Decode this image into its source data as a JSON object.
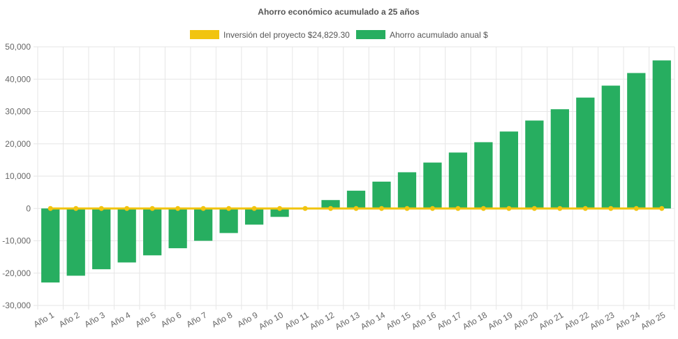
{
  "chart_data": {
    "type": "bar",
    "title": "Ahorro económico acumulado a 25 años",
    "categories": [
      "Año 1",
      "Año 2",
      "Año 3",
      "Año 4",
      "Año 5",
      "Año 6",
      "Año 7",
      "Año 8",
      "Año 9",
      "Año 10",
      "Año 11",
      "Año 12",
      "Año 13",
      "Año 14",
      "Año 15",
      "Año 16",
      "Año 17",
      "Año 18",
      "Año 19",
      "Año 20",
      "Año 21",
      "Año 22",
      "Año 23",
      "Año 24",
      "Año 25"
    ],
    "series": [
      {
        "name": "Inversión del proyecto $24,829.30",
        "type": "line",
        "color": "#f1c40f",
        "values": [
          0,
          0,
          0,
          0,
          0,
          0,
          0,
          0,
          0,
          0,
          0,
          0,
          0,
          0,
          0,
          0,
          0,
          0,
          0,
          0,
          0,
          0,
          0,
          0,
          0
        ]
      },
      {
        "name": "Ahorro acumulado anual $",
        "type": "bar",
        "color": "#27ae60",
        "values": [
          -22900,
          -20800,
          -18800,
          -16700,
          -14500,
          -12300,
          -10000,
          -7600,
          -5000,
          -2600,
          0,
          2600,
          5500,
          8300,
          11200,
          14200,
          17300,
          20500,
          23800,
          27200,
          30700,
          34300,
          38000,
          41900,
          45800
        ]
      }
    ],
    "y_ticks": [
      "50,000",
      "40,000",
      "30,000",
      "20,000",
      "10,000",
      "0",
      "-10,000",
      "-20,000",
      "-30,000"
    ],
    "ylim": [
      -30000,
      50000
    ],
    "legend_position": "top",
    "grid": true
  }
}
